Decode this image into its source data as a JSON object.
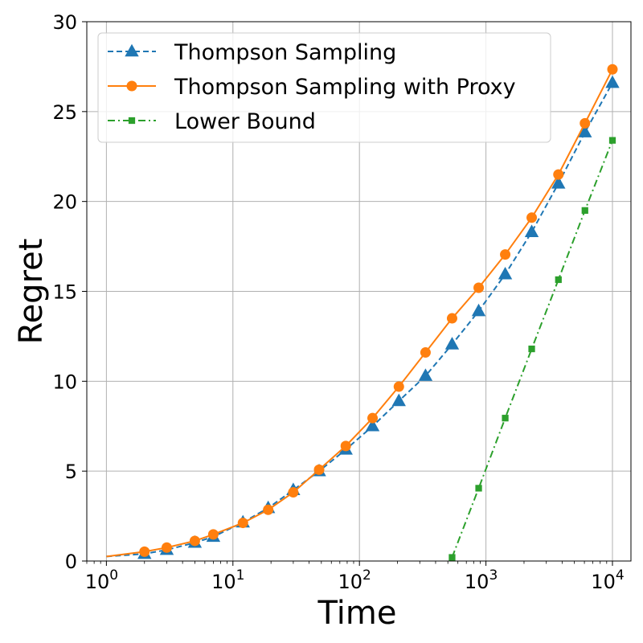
{
  "chart_data": {
    "type": "line",
    "xscale": "log",
    "xlabel": "Time",
    "ylabel": "Regret",
    "xlim": [
      0.7,
      14000
    ],
    "ylim": [
      0,
      30
    ],
    "grid": true,
    "legend_position": "top-left",
    "x_ticks": [
      {
        "value": 1,
        "base": "10",
        "exp": "0"
      },
      {
        "value": 10,
        "base": "10",
        "exp": "1"
      },
      {
        "value": 100,
        "base": "10",
        "exp": "2"
      },
      {
        "value": 1000,
        "base": "10",
        "exp": "3"
      },
      {
        "value": 10000,
        "base": "10",
        "exp": "4"
      }
    ],
    "y_ticks": [
      {
        "value": 0,
        "label": "0"
      },
      {
        "value": 5,
        "label": "5"
      },
      {
        "value": 10,
        "label": "10"
      },
      {
        "value": 15,
        "label": "15"
      },
      {
        "value": 20,
        "label": "20"
      },
      {
        "value": 25,
        "label": "25"
      },
      {
        "value": 30,
        "label": "30"
      }
    ],
    "series": [
      {
        "name": "Thompson Sampling",
        "color": "#1f77b4",
        "line_style": "dashed",
        "marker": "triangle",
        "line_points": [
          [
            1,
            0.25
          ],
          [
            2,
            0.4
          ],
          [
            3,
            0.62
          ],
          [
            5,
            1.02
          ],
          [
            7,
            1.35
          ],
          [
            12,
            2.15
          ],
          [
            19,
            2.95
          ],
          [
            30,
            3.95
          ],
          [
            48,
            5.0
          ],
          [
            78,
            6.2
          ],
          [
            127,
            7.5
          ],
          [
            205,
            8.9
          ],
          [
            333,
            10.3
          ],
          [
            540,
            12.05
          ],
          [
            876,
            13.9
          ],
          [
            1420,
            15.95
          ],
          [
            2300,
            18.3
          ],
          [
            3740,
            21.0
          ],
          [
            6060,
            23.85
          ],
          [
            10000,
            26.6
          ]
        ],
        "marker_points": [
          [
            2,
            0.4
          ],
          [
            3,
            0.62
          ],
          [
            5,
            1.02
          ],
          [
            7,
            1.35
          ],
          [
            12,
            2.15
          ],
          [
            19,
            2.95
          ],
          [
            30,
            3.95
          ],
          [
            48,
            5.0
          ],
          [
            78,
            6.2
          ],
          [
            127,
            7.5
          ],
          [
            205,
            8.9
          ],
          [
            333,
            10.3
          ],
          [
            540,
            12.05
          ],
          [
            876,
            13.9
          ],
          [
            1420,
            15.95
          ],
          [
            2300,
            18.3
          ],
          [
            3740,
            21.0
          ],
          [
            6060,
            23.85
          ],
          [
            10000,
            26.6
          ]
        ]
      },
      {
        "name": "Thompson Sampling with Proxy",
        "color": "#ff7f0e",
        "line_style": "solid",
        "marker": "circle",
        "line_points": [
          [
            1,
            0.25
          ],
          [
            2,
            0.52
          ],
          [
            3,
            0.75
          ],
          [
            5,
            1.12
          ],
          [
            7,
            1.48
          ],
          [
            12,
            2.12
          ],
          [
            19,
            2.85
          ],
          [
            30,
            3.82
          ],
          [
            48,
            5.08
          ],
          [
            78,
            6.4
          ],
          [
            127,
            7.95
          ],
          [
            205,
            9.7
          ],
          [
            333,
            11.6
          ],
          [
            540,
            13.5
          ],
          [
            876,
            15.2
          ],
          [
            1420,
            17.05
          ],
          [
            2300,
            19.1
          ],
          [
            3740,
            21.5
          ],
          [
            6060,
            24.35
          ],
          [
            10000,
            27.35
          ]
        ],
        "marker_points": [
          [
            2,
            0.52
          ],
          [
            3,
            0.75
          ],
          [
            5,
            1.12
          ],
          [
            7,
            1.48
          ],
          [
            12,
            2.12
          ],
          [
            19,
            2.85
          ],
          [
            30,
            3.82
          ],
          [
            48,
            5.08
          ],
          [
            78,
            6.4
          ],
          [
            127,
            7.95
          ],
          [
            205,
            9.7
          ],
          [
            333,
            11.6
          ],
          [
            540,
            13.5
          ],
          [
            876,
            15.2
          ],
          [
            1420,
            17.05
          ],
          [
            2300,
            19.1
          ],
          [
            3740,
            21.5
          ],
          [
            6060,
            24.35
          ],
          [
            10000,
            27.35
          ]
        ]
      },
      {
        "name": "Lower Bound",
        "color": "#2ca02c",
        "line_style": "dashdot",
        "marker": "square",
        "line_points": [
          [
            540,
            0.2
          ],
          [
            876,
            4.05
          ],
          [
            1420,
            7.95
          ],
          [
            2300,
            11.8
          ],
          [
            3740,
            15.65
          ],
          [
            6060,
            19.5
          ],
          [
            10000,
            23.4
          ]
        ],
        "marker_points": [
          [
            540,
            0.2
          ],
          [
            876,
            4.05
          ],
          [
            1420,
            7.95
          ],
          [
            2300,
            11.8
          ],
          [
            3740,
            15.65
          ],
          [
            6060,
            19.5
          ],
          [
            10000,
            23.4
          ]
        ]
      }
    ]
  }
}
